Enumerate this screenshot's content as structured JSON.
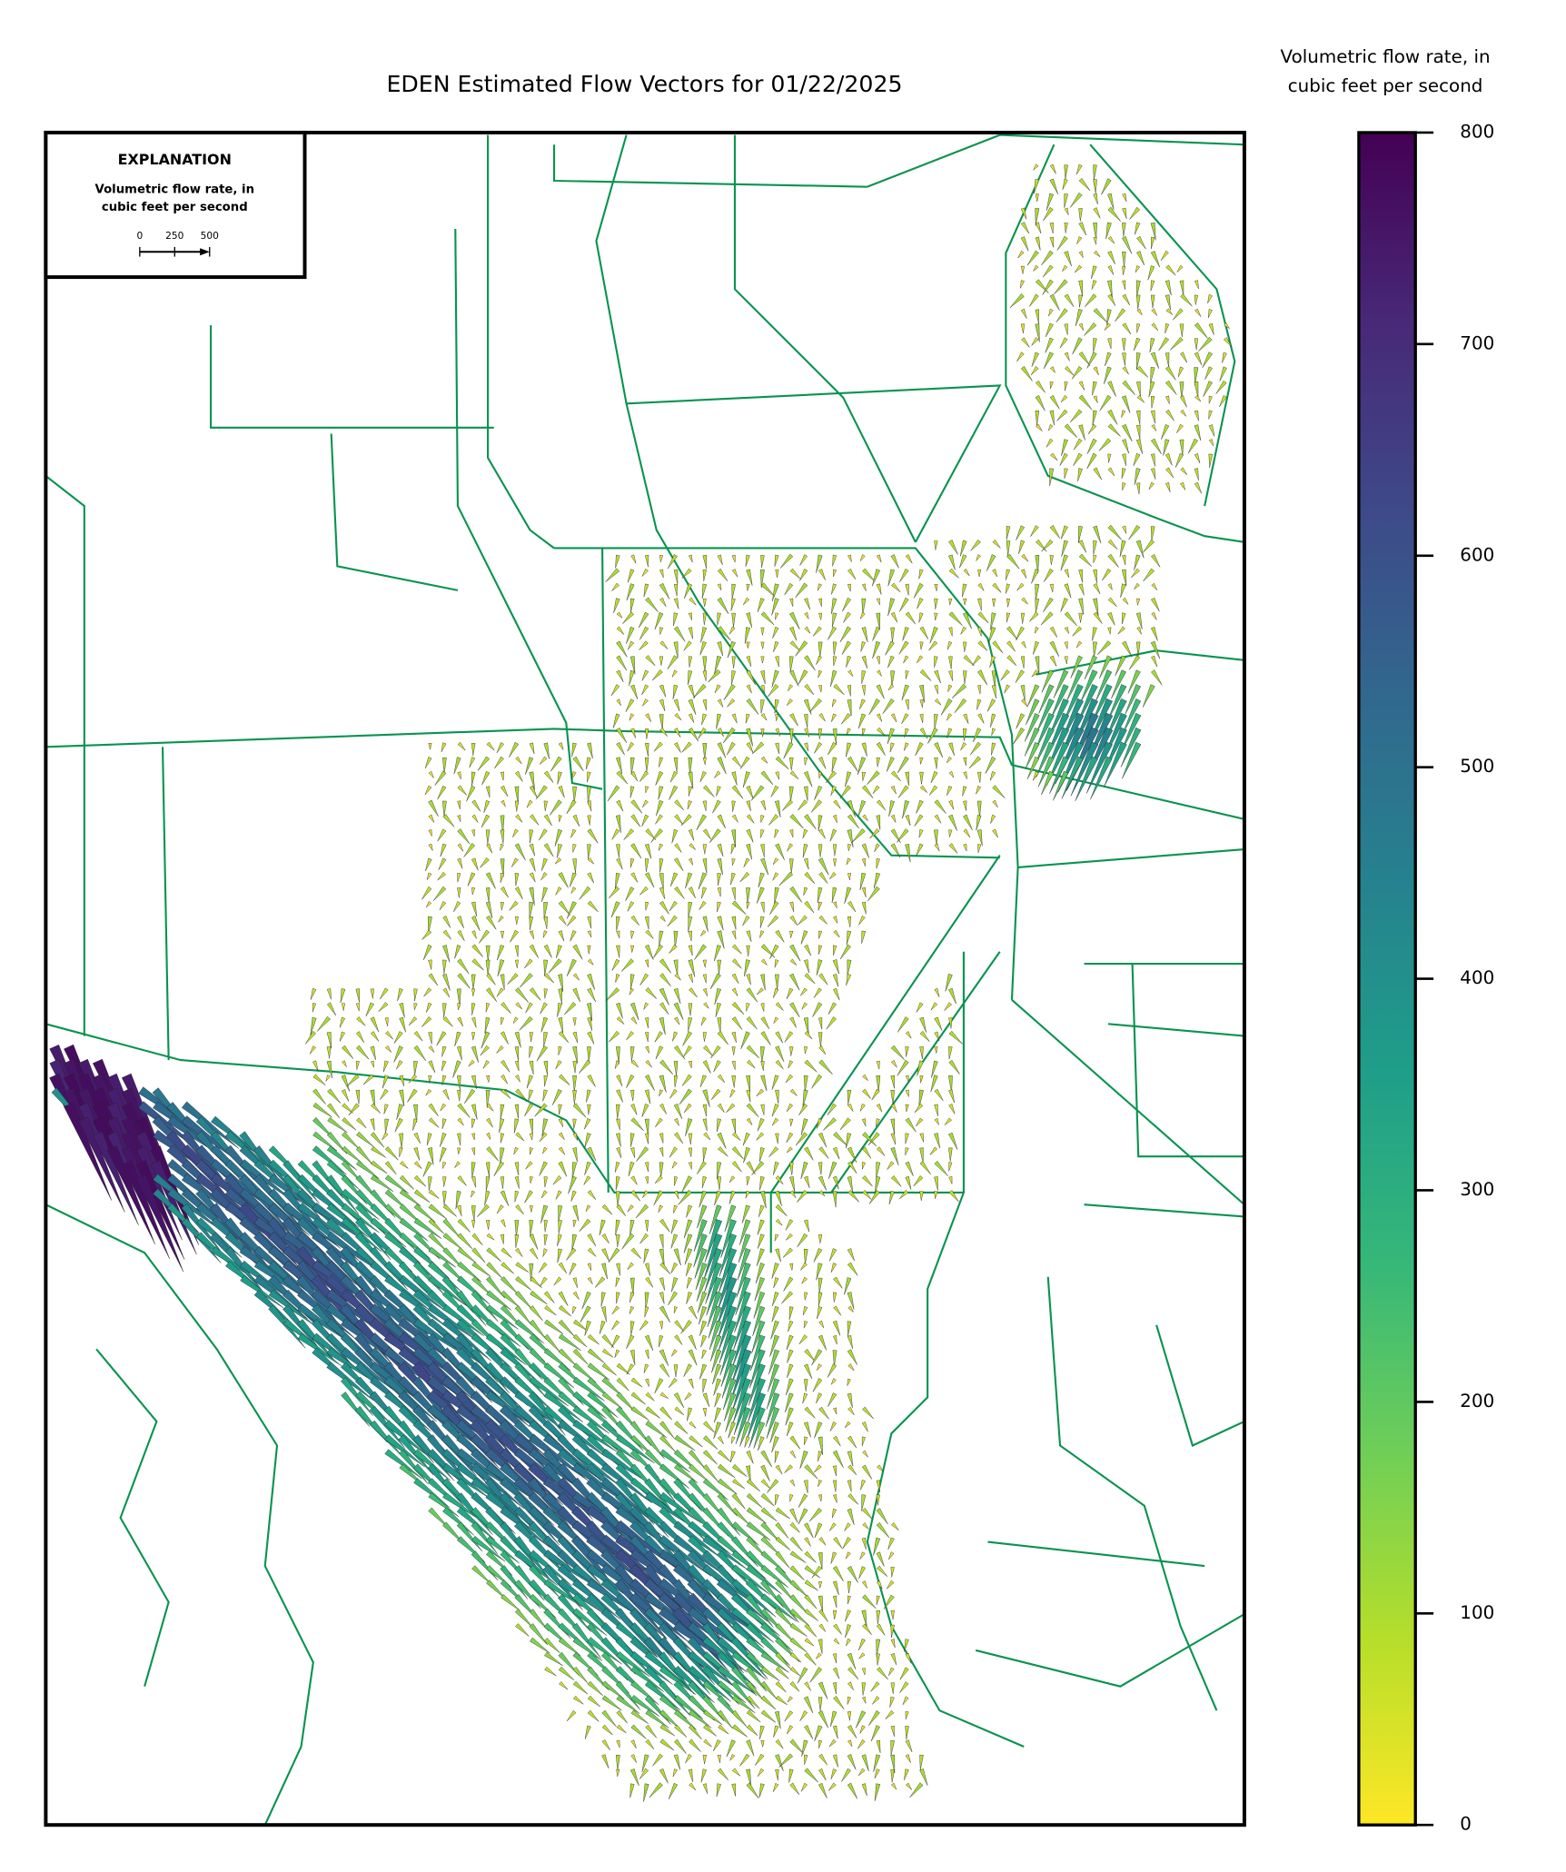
{
  "title": "EDEN Estimated Flow Vectors for 01/22/2025",
  "explanation": {
    "title": "EXPLANATION",
    "label_lines": [
      "Volumetric flow rate, in",
      "cubic feet per second"
    ],
    "scale_ticks": [
      0,
      250,
      500
    ]
  },
  "colorbar": {
    "label_lines": [
      "Volumetric flow rate, in",
      "cubic feet per second"
    ],
    "lim": [
      0,
      800
    ],
    "ticks": [
      0,
      100,
      200,
      300,
      400,
      500,
      600,
      700,
      800
    ],
    "colors": [
      "#fde725",
      "#b5de2b",
      "#6ece58",
      "#35b779",
      "#1f9e89",
      "#26828e",
      "#31688e",
      "#3e4989",
      "#482878",
      "#440154"
    ]
  }
}
